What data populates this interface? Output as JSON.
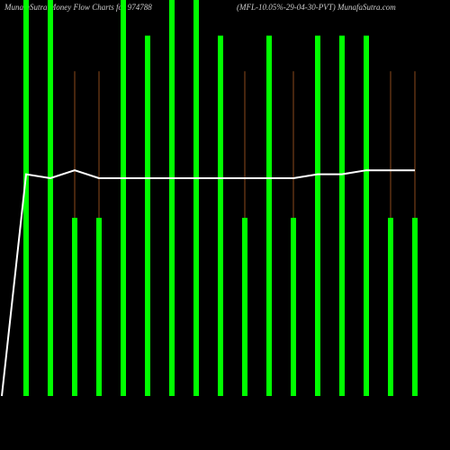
{
  "chart_data": {
    "type": "bar",
    "title": "MunafaSutra  Money Flow  Charts for 974788",
    "subtitle": "(MFL-10.05%-29-04-30-PVT) MunafaSutra.com",
    "categories": [
      null,
      null,
      null,
      null,
      null,
      null,
      null,
      null,
      null,
      null,
      null,
      null,
      null,
      null,
      null,
      null,
      null,
      null
    ],
    "ylim": [
      0,
      100
    ],
    "series": [
      {
        "color": "#00ff00",
        "values": [
          null,
          100,
          100,
          45,
          45,
          100,
          91,
          100,
          100,
          91,
          45,
          91,
          45,
          91,
          91,
          91,
          45,
          45
        ]
      },
      {
        "color": "#8b4a1c",
        "values": [
          null,
          null,
          null,
          82,
          82,
          null,
          null,
          null,
          null,
          null,
          82,
          null,
          82,
          null,
          null,
          null,
          82,
          82
        ]
      },
      {
        "type": "line",
        "color": "#ffffff",
        "values": [
          0,
          56,
          55,
          57,
          55,
          55,
          55,
          55,
          55,
          55,
          55,
          55,
          55,
          56,
          56,
          57,
          57,
          57
        ]
      }
    ]
  }
}
